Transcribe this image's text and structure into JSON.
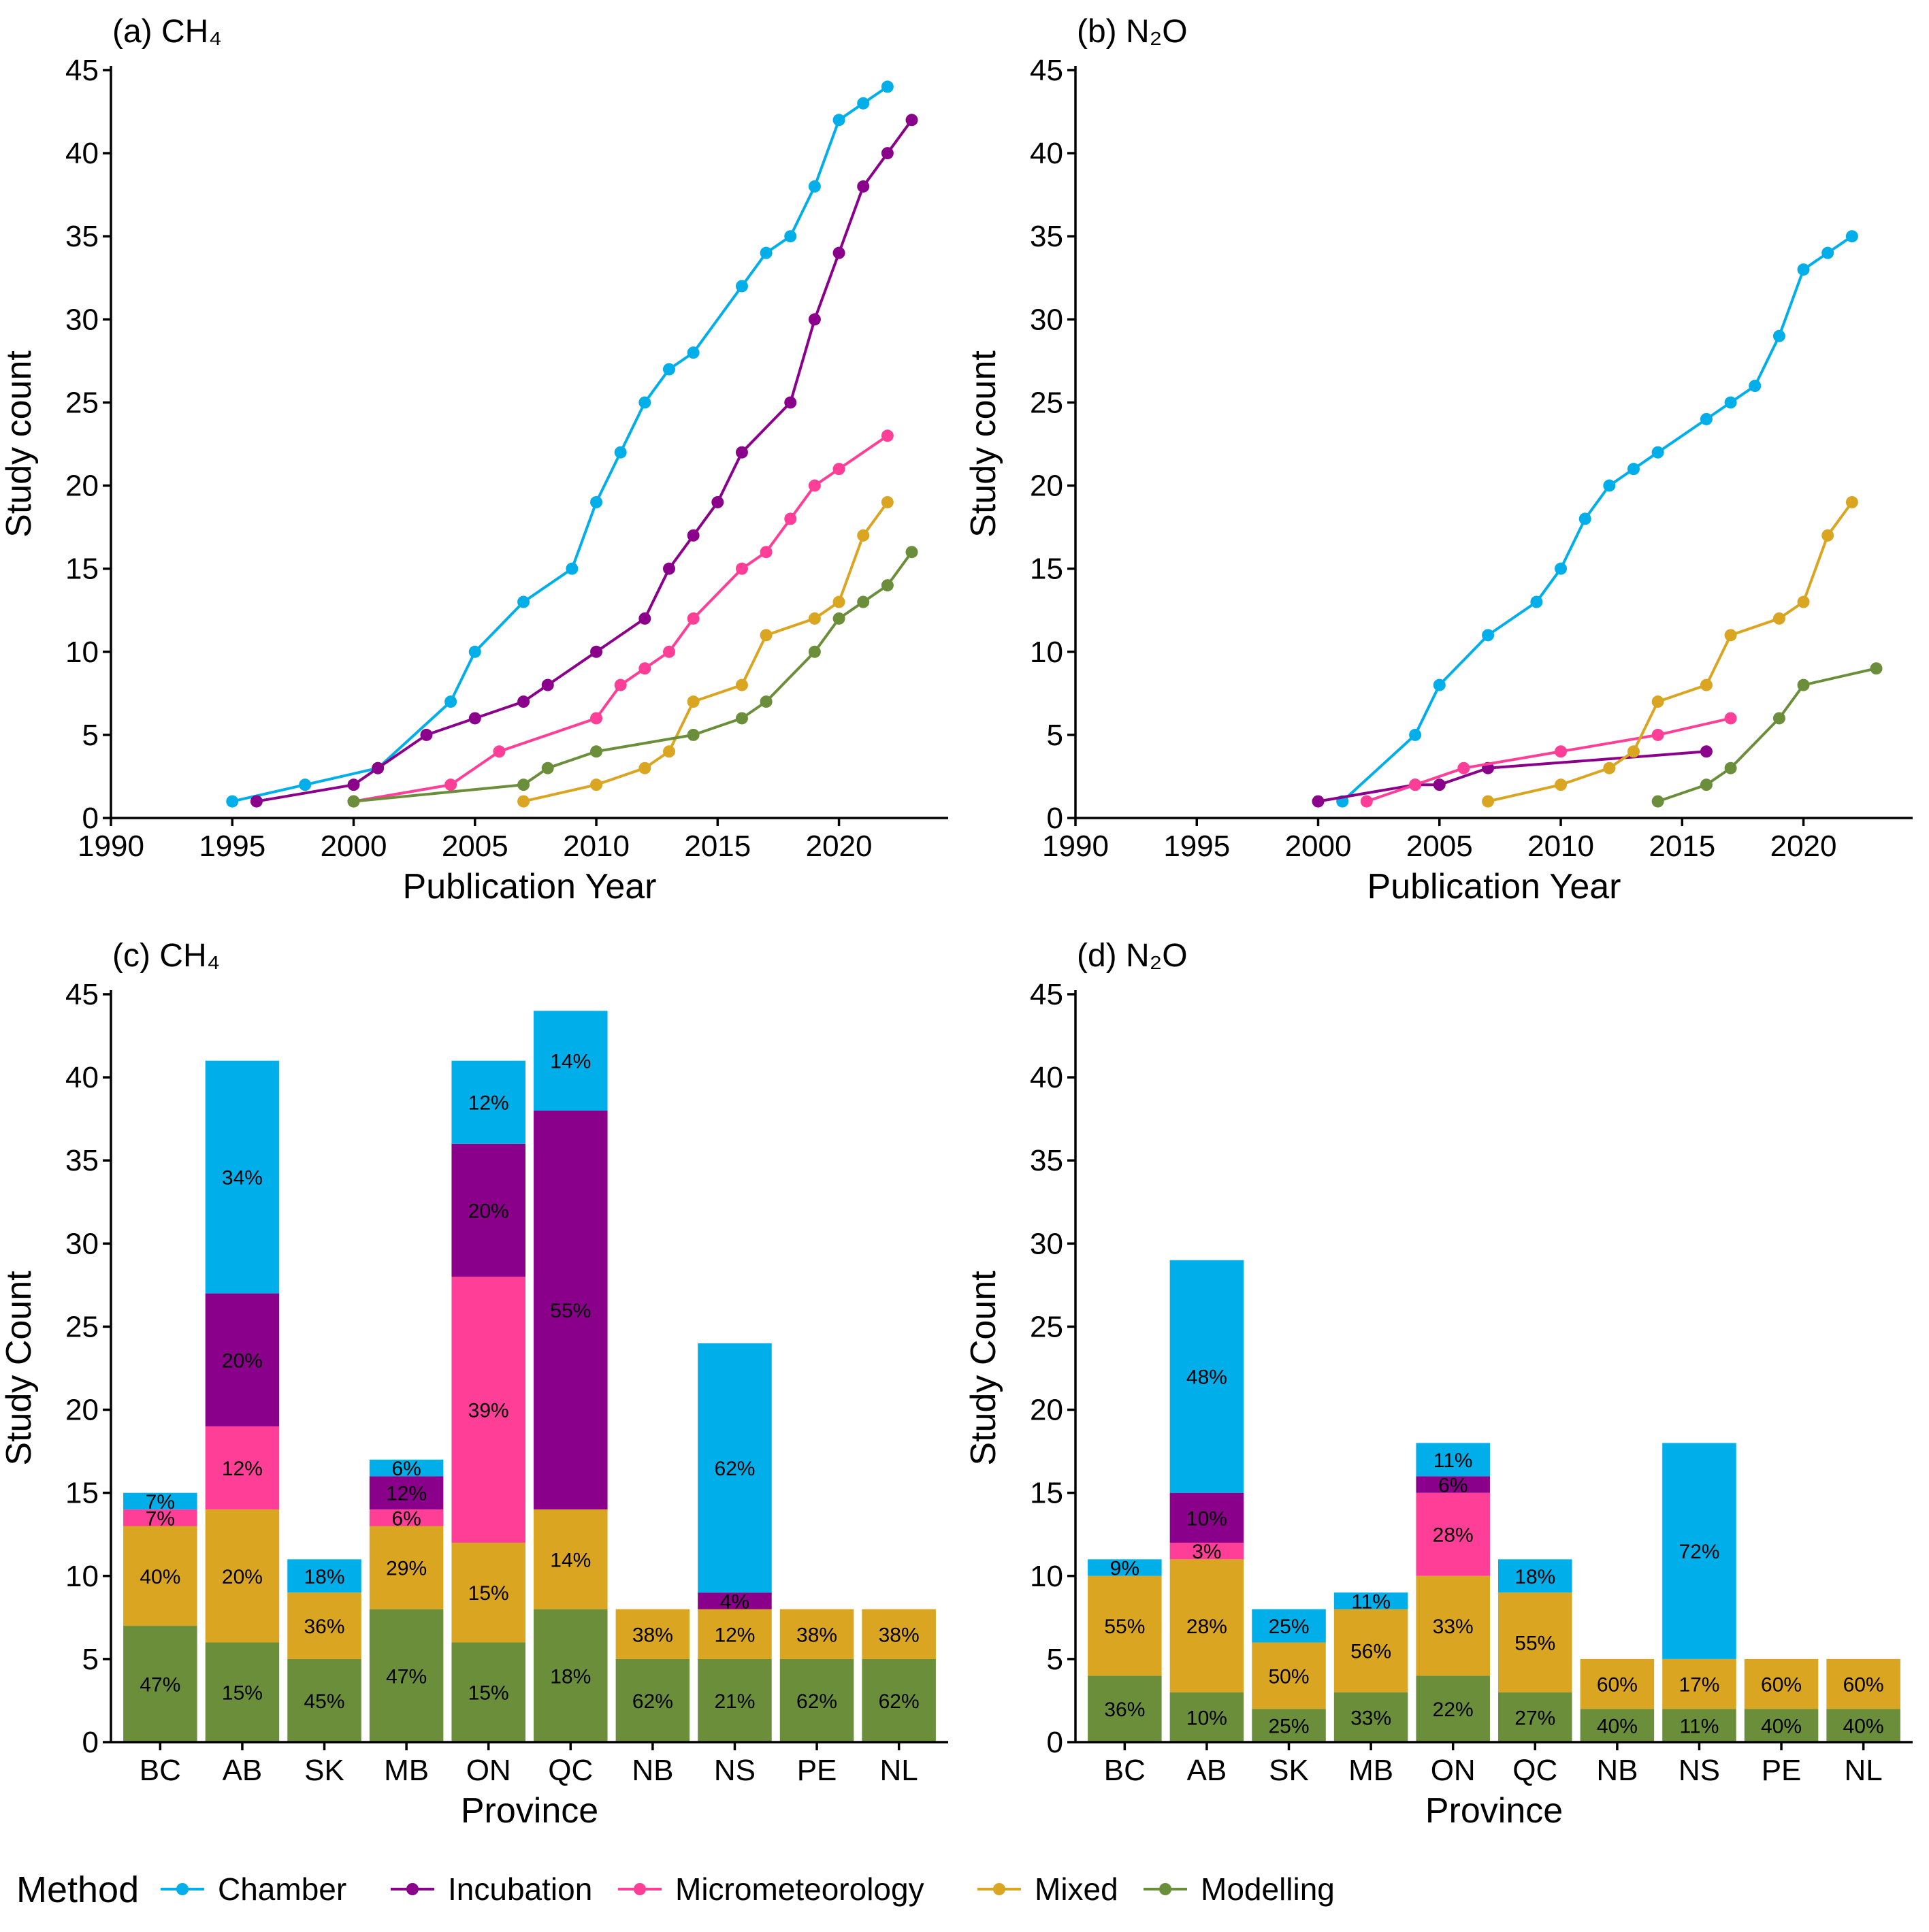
{
  "colors": {
    "Chamber": "#00AEEA",
    "Incubation": "#8B008B",
    "Micrometeorology": "#FF3E97",
    "Mixed": "#DAA520",
    "Modelling": "#6B8E3A"
  },
  "legend": {
    "title": "Method",
    "items": [
      "Chamber",
      "Incubation",
      "Micrometeorology",
      "Mixed",
      "Modelling"
    ]
  },
  "chart_data": [
    {
      "id": "a",
      "type": "line",
      "title": "(a) CH₄",
      "xlabel": "Publication Year",
      "ylabel": "Study count",
      "xlim": [
        1990,
        2024.5
      ],
      "ylim": [
        0,
        45
      ],
      "xticks": [
        1990,
        1995,
        2000,
        2005,
        2010,
        2015,
        2020
      ],
      "yticks": [
        0,
        5,
        10,
        15,
        20,
        25,
        30,
        35,
        40,
        45
      ],
      "series": [
        {
          "name": "Chamber",
          "points": [
            [
              1995,
              1
            ],
            [
              1998,
              2
            ],
            [
              2001,
              3
            ],
            [
              2004,
              7
            ],
            [
              2005,
              10
            ],
            [
              2007,
              13
            ],
            [
              2009,
              15
            ],
            [
              2010,
              19
            ],
            [
              2011,
              22
            ],
            [
              2012,
              25
            ],
            [
              2013,
              27
            ],
            [
              2014,
              28
            ],
            [
              2016,
              32
            ],
            [
              2017,
              34
            ],
            [
              2018,
              35
            ],
            [
              2019,
              38
            ],
            [
              2020,
              42
            ],
            [
              2021,
              43
            ],
            [
              2022,
              44
            ]
          ]
        },
        {
          "name": "Incubation",
          "points": [
            [
              1996,
              1
            ],
            [
              2000,
              2
            ],
            [
              2001,
              3
            ],
            [
              2003,
              5
            ],
            [
              2005,
              6
            ],
            [
              2007,
              7
            ],
            [
              2008,
              8
            ],
            [
              2010,
              10
            ],
            [
              2012,
              12
            ],
            [
              2013,
              15
            ],
            [
              2014,
              17
            ],
            [
              2015,
              19
            ],
            [
              2016,
              22
            ],
            [
              2018,
              25
            ],
            [
              2019,
              30
            ],
            [
              2020,
              34
            ],
            [
              2021,
              38
            ],
            [
              2022,
              40
            ],
            [
              2023,
              42
            ]
          ]
        },
        {
          "name": "Micrometeorology",
          "points": [
            [
              2000,
              1
            ],
            [
              2004,
              2
            ],
            [
              2006,
              4
            ],
            [
              2010,
              6
            ],
            [
              2011,
              8
            ],
            [
              2012,
              9
            ],
            [
              2013,
              10
            ],
            [
              2014,
              12
            ],
            [
              2016,
              15
            ],
            [
              2017,
              16
            ],
            [
              2018,
              18
            ],
            [
              2019,
              20
            ],
            [
              2020,
              21
            ],
            [
              2022,
              23
            ]
          ]
        },
        {
          "name": "Mixed",
          "points": [
            [
              2007,
              1
            ],
            [
              2010,
              2
            ],
            [
              2012,
              3
            ],
            [
              2013,
              4
            ],
            [
              2014,
              7
            ],
            [
              2016,
              8
            ],
            [
              2017,
              11
            ],
            [
              2019,
              12
            ],
            [
              2020,
              13
            ],
            [
              2021,
              17
            ],
            [
              2022,
              19
            ]
          ]
        },
        {
          "name": "Modelling",
          "points": [
            [
              2000,
              1
            ],
            [
              2007,
              2
            ],
            [
              2008,
              3
            ],
            [
              2010,
              4
            ],
            [
              2014,
              5
            ],
            [
              2016,
              6
            ],
            [
              2017,
              7
            ],
            [
              2019,
              10
            ],
            [
              2020,
              12
            ],
            [
              2021,
              13
            ],
            [
              2022,
              14
            ],
            [
              2023,
              16
            ]
          ]
        }
      ]
    },
    {
      "id": "b",
      "type": "line",
      "title": "(b) N₂O",
      "xlabel": "Publication Year",
      "ylabel": "Study count",
      "xlim": [
        1990,
        2024.5
      ],
      "ylim": [
        0,
        45
      ],
      "xticks": [
        1990,
        1995,
        2000,
        2005,
        2010,
        2015,
        2020
      ],
      "yticks": [
        0,
        5,
        10,
        15,
        20,
        25,
        30,
        35,
        40,
        45
      ],
      "series": [
        {
          "name": "Chamber",
          "points": [
            [
              2001,
              1
            ],
            [
              2004,
              5
            ],
            [
              2005,
              8
            ],
            [
              2007,
              11
            ],
            [
              2009,
              13
            ],
            [
              2010,
              15
            ],
            [
              2011,
              18
            ],
            [
              2012,
              20
            ],
            [
              2013,
              21
            ],
            [
              2014,
              22
            ],
            [
              2016,
              24
            ],
            [
              2017,
              25
            ],
            [
              2018,
              26
            ],
            [
              2019,
              29
            ],
            [
              2020,
              33
            ],
            [
              2021,
              34
            ],
            [
              2022,
              35
            ]
          ]
        },
        {
          "name": "Incubation",
          "points": [
            [
              2000,
              1
            ],
            [
              2004,
              2
            ],
            [
              2005,
              2
            ],
            [
              2007,
              3
            ],
            [
              2016,
              4
            ]
          ]
        },
        {
          "name": "Micrometeorology",
          "points": [
            [
              2002,
              1
            ],
            [
              2004,
              2
            ],
            [
              2006,
              3
            ],
            [
              2010,
              4
            ],
            [
              2014,
              5
            ],
            [
              2017,
              6
            ]
          ]
        },
        {
          "name": "Mixed",
          "points": [
            [
              2007,
              1
            ],
            [
              2010,
              2
            ],
            [
              2012,
              3
            ],
            [
              2013,
              4
            ],
            [
              2014,
              7
            ],
            [
              2016,
              8
            ],
            [
              2017,
              11
            ],
            [
              2019,
              12
            ],
            [
              2020,
              13
            ],
            [
              2021,
              17
            ],
            [
              2022,
              19
            ]
          ]
        },
        {
          "name": "Modelling",
          "points": [
            [
              2014,
              1
            ],
            [
              2016,
              2
            ],
            [
              2017,
              3
            ],
            [
              2019,
              6
            ],
            [
              2020,
              8
            ],
            [
              2023,
              9
            ]
          ]
        }
      ]
    },
    {
      "id": "c",
      "type": "bar",
      "stacked": true,
      "title": "(c) CH₄",
      "xlabel": "Province",
      "ylabel": "Study Count",
      "ylim": [
        0,
        45
      ],
      "yticks": [
        0,
        5,
        10,
        15,
        20,
        25,
        30,
        35,
        40,
        45
      ],
      "categories": [
        "BC",
        "AB",
        "SK",
        "MB",
        "ON",
        "QC",
        "NB",
        "NS",
        "PE",
        "NL"
      ],
      "stack_order": [
        "Modelling",
        "Mixed",
        "Micrometeorology",
        "Incubation",
        "Chamber"
      ],
      "series": [
        {
          "name": "Modelling",
          "values": [
            7,
            6,
            5,
            8,
            6,
            8,
            5,
            5,
            5,
            5
          ],
          "labels": [
            "47%",
            "15%",
            "45%",
            "47%",
            "15%",
            "18%",
            "62%",
            "21%",
            "62%",
            "62%"
          ]
        },
        {
          "name": "Mixed",
          "values": [
            6,
            8,
            4,
            5,
            6,
            6,
            3,
            3,
            3,
            3
          ],
          "labels": [
            "40%",
            "20%",
            "36%",
            "29%",
            "15%",
            "14%",
            "38%",
            "12%",
            "38%",
            "38%"
          ]
        },
        {
          "name": "Micrometeorology",
          "values": [
            1,
            5,
            0,
            1,
            16,
            0,
            0,
            0,
            0,
            0
          ],
          "labels": [
            "7%",
            "12%",
            "",
            "6%",
            "39%",
            "",
            "",
            "",
            "",
            ""
          ]
        },
        {
          "name": "Incubation",
          "values": [
            0,
            8,
            0,
            2,
            8,
            24,
            0,
            1,
            0,
            0
          ],
          "labels": [
            "",
            "20%",
            "",
            "12%",
            "20%",
            "55%",
            "",
            "4%",
            "",
            ""
          ]
        },
        {
          "name": "Chamber",
          "values": [
            1,
            14,
            2,
            1,
            5,
            6,
            0,
            15,
            0,
            0
          ],
          "labels": [
            "7%",
            "34%",
            "18%",
            "6%",
            "12%",
            "14%",
            "",
            "62%",
            "",
            ""
          ]
        }
      ]
    },
    {
      "id": "d",
      "type": "bar",
      "stacked": true,
      "title": "(d) N₂O",
      "xlabel": "Province",
      "ylabel": "Study Count",
      "ylim": [
        0,
        45
      ],
      "yticks": [
        0,
        5,
        10,
        15,
        20,
        25,
        30,
        35,
        40,
        45
      ],
      "categories": [
        "BC",
        "AB",
        "SK",
        "MB",
        "ON",
        "QC",
        "NB",
        "NS",
        "PE",
        "NL"
      ],
      "stack_order": [
        "Modelling",
        "Mixed",
        "Micrometeorology",
        "Incubation",
        "Chamber"
      ],
      "series": [
        {
          "name": "Modelling",
          "values": [
            4,
            3,
            2,
            3,
            4,
            3,
            2,
            2,
            2,
            2
          ],
          "labels": [
            "36%",
            "10%",
            "25%",
            "33%",
            "22%",
            "27%",
            "40%",
            "11%",
            "40%",
            "40%"
          ]
        },
        {
          "name": "Mixed",
          "values": [
            6,
            8,
            4,
            5,
            6,
            6,
            3,
            3,
            3,
            3
          ],
          "labels": [
            "55%",
            "28%",
            "50%",
            "56%",
            "33%",
            "55%",
            "60%",
            "17%",
            "60%",
            "60%"
          ]
        },
        {
          "name": "Micrometeorology",
          "values": [
            0,
            1,
            0,
            0,
            5,
            0,
            0,
            0,
            0,
            0
          ],
          "labels": [
            "",
            "3%",
            "",
            "",
            "28%",
            "",
            "",
            "",
            "",
            ""
          ]
        },
        {
          "name": "Incubation",
          "values": [
            0,
            3,
            0,
            0,
            1,
            0,
            0,
            0,
            0,
            0
          ],
          "labels": [
            "",
            "10%",
            "",
            "",
            "6%",
            "",
            "",
            "",
            "",
            ""
          ]
        },
        {
          "name": "Chamber",
          "values": [
            1,
            14,
            2,
            1,
            2,
            2,
            0,
            13,
            0,
            0
          ],
          "labels": [
            "9%",
            "48%",
            "25%",
            "11%",
            "11%",
            "18%",
            "",
            "72%",
            "",
            ""
          ]
        }
      ]
    }
  ]
}
